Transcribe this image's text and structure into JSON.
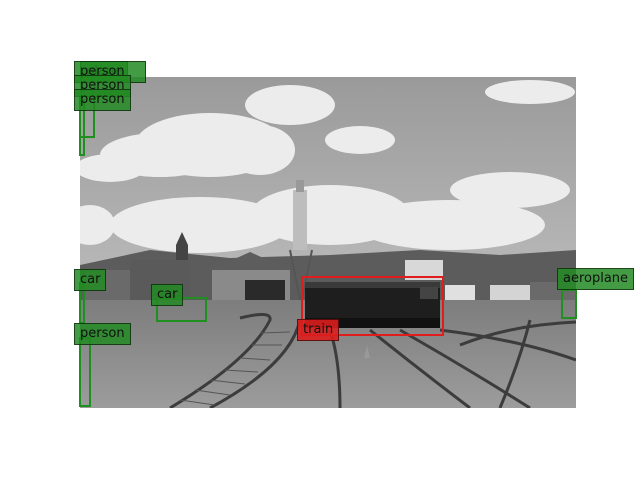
{
  "detections": [
    {
      "label": "train",
      "color": "#e01c1c"
    },
    {
      "label": "aeroplane",
      "color": "#1f8f1f"
    },
    {
      "label": "car",
      "color": "#1f8f1f"
    },
    {
      "label": "car",
      "color": "#1f8f1f"
    },
    {
      "label": "person",
      "color": "#1f8f1f"
    },
    {
      "label": "person",
      "color": "#1f8f1f"
    },
    {
      "label": "person",
      "color": "#1f8f1f"
    },
    {
      "label": "person",
      "color": "#1f8f1f"
    },
    {
      "label": "plane",
      "color": "#1f8f1f"
    }
  ]
}
